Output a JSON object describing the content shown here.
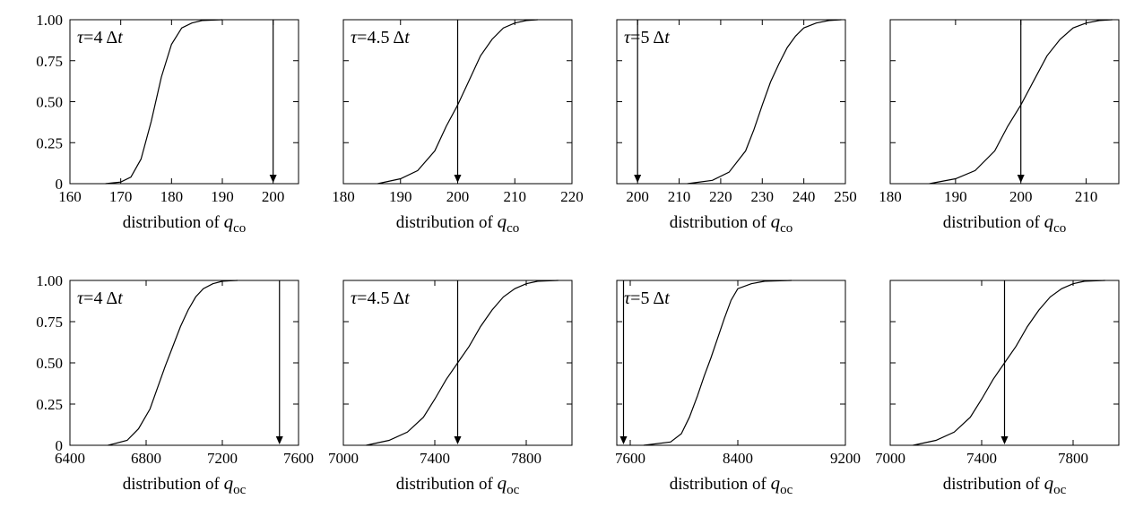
{
  "chart_data": [
    {
      "type": "line",
      "panel_label": {
        "symbol": "τ",
        "eq": "=4 Δ",
        "var": "t"
      },
      "xlabel": {
        "text": "distribution of ",
        "var": "q",
        "sub": "co"
      },
      "xlim": [
        160,
        205
      ],
      "xticks": [
        "160",
        "170",
        "180",
        "190",
        "200"
      ],
      "ylim": [
        0,
        1
      ],
      "yticks": [
        "0",
        "0.25",
        "0.50",
        "0.75",
        "1.00"
      ],
      "show_ytick_labels": true,
      "marker_x": 200,
      "series": [
        {
          "x": [
            167,
            170,
            172,
            174,
            176,
            178,
            180,
            182,
            184,
            186,
            190
          ],
          "y": [
            0,
            0.01,
            0.04,
            0.15,
            0.38,
            0.65,
            0.85,
            0.95,
            0.98,
            0.995,
            1.0
          ]
        }
      ]
    },
    {
      "type": "line",
      "panel_label": {
        "symbol": "τ",
        "eq": "=4.5 Δ",
        "var": "t"
      },
      "xlabel": {
        "text": "distribution of ",
        "var": "q",
        "sub": "co"
      },
      "xlim": [
        180,
        220
      ],
      "xticks": [
        "180",
        "190",
        "200",
        "210",
        "220"
      ],
      "ylim": [
        0,
        1
      ],
      "yticks": [
        "0",
        "0.25",
        "0.50",
        "0.75",
        "1.00"
      ],
      "show_ytick_labels": false,
      "marker_x": 200,
      "series": [
        {
          "x": [
            186,
            190,
            193,
            196,
            198,
            200,
            202,
            204,
            206,
            208,
            210,
            212,
            214
          ],
          "y": [
            0,
            0.03,
            0.08,
            0.2,
            0.35,
            0.48,
            0.63,
            0.78,
            0.88,
            0.95,
            0.98,
            0.995,
            1.0
          ]
        }
      ]
    },
    {
      "type": "line",
      "panel_label": {
        "symbol": "τ",
        "eq": "=5 Δ",
        "var": "t"
      },
      "xlabel": {
        "text": "distribution of ",
        "var": "q",
        "sub": "co"
      },
      "xlim": [
        195,
        250
      ],
      "xticks": [
        "200",
        "210",
        "220",
        "230",
        "240",
        "250"
      ],
      "ylim": [
        0,
        1
      ],
      "yticks": [
        "0",
        "0.25",
        "0.50",
        "0.75",
        "1.00"
      ],
      "show_ytick_labels": false,
      "marker_x": 200,
      "series": [
        {
          "x": [
            212,
            218,
            222,
            226,
            228,
            230,
            232,
            234,
            236,
            238,
            240,
            243,
            246,
            249
          ],
          "y": [
            0,
            0.02,
            0.07,
            0.2,
            0.33,
            0.48,
            0.62,
            0.73,
            0.83,
            0.9,
            0.95,
            0.98,
            0.995,
            1.0
          ]
        }
      ]
    },
    {
      "type": "line",
      "panel_label": null,
      "xlabel": {
        "text": "distribution of ",
        "var": "q",
        "sub": "co"
      },
      "xlim": [
        180,
        215
      ],
      "xticks": [
        "180",
        "190",
        "200",
        "210"
      ],
      "ylim": [
        0,
        1
      ],
      "yticks": [
        "0",
        "0.25",
        "0.50",
        "0.75",
        "1.00"
      ],
      "show_ytick_labels": false,
      "marker_x": 200,
      "series": [
        {
          "x": [
            186,
            190,
            193,
            196,
            198,
            200,
            202,
            204,
            206,
            208,
            210,
            212,
            214
          ],
          "y": [
            0,
            0.03,
            0.08,
            0.2,
            0.35,
            0.48,
            0.63,
            0.78,
            0.88,
            0.95,
            0.98,
            0.995,
            1.0
          ]
        }
      ]
    },
    {
      "type": "line",
      "panel_label": {
        "symbol": "τ",
        "eq": "=4 Δ",
        "var": "t"
      },
      "xlabel": {
        "text": "distribution of ",
        "var": "q",
        "sub": "oc"
      },
      "xlim": [
        6400,
        7600
      ],
      "xticks": [
        "6400",
        "6800",
        "7200",
        "7600"
      ],
      "ylim": [
        0,
        1
      ],
      "yticks": [
        "0",
        "0.25",
        "0.50",
        "0.75",
        "1.00"
      ],
      "show_ytick_labels": true,
      "marker_x": 7500,
      "series": [
        {
          "x": [
            6600,
            6700,
            6760,
            6820,
            6860,
            6900,
            6940,
            6980,
            7020,
            7060,
            7100,
            7150,
            7200,
            7280
          ],
          "y": [
            0,
            0.03,
            0.1,
            0.22,
            0.35,
            0.48,
            0.6,
            0.72,
            0.82,
            0.9,
            0.95,
            0.98,
            0.995,
            1.0
          ]
        }
      ]
    },
    {
      "type": "line",
      "panel_label": {
        "symbol": "τ",
        "eq": "=4.5 Δ",
        "var": "t"
      },
      "xlabel": {
        "text": "distribution of ",
        "var": "q",
        "sub": "oc"
      },
      "xlim": [
        7000,
        8000
      ],
      "xticks": [
        "7000",
        "7400",
        "7800"
      ],
      "ylim": [
        0,
        1
      ],
      "yticks": [
        "0",
        "0.25",
        "0.50",
        "0.75",
        "1.00"
      ],
      "show_ytick_labels": false,
      "marker_x": 7500,
      "series": [
        {
          "x": [
            7100,
            7200,
            7280,
            7350,
            7400,
            7450,
            7500,
            7550,
            7600,
            7650,
            7700,
            7750,
            7800,
            7850,
            7940
          ],
          "y": [
            0,
            0.03,
            0.08,
            0.17,
            0.28,
            0.4,
            0.5,
            0.6,
            0.72,
            0.82,
            0.9,
            0.95,
            0.98,
            0.995,
            1.0
          ]
        }
      ]
    },
    {
      "type": "line",
      "panel_label": {
        "symbol": "τ",
        "eq": "=5 Δ",
        "var": "t"
      },
      "xlabel": {
        "text": "distribution of ",
        "var": "q",
        "sub": "oc"
      },
      "xlim": [
        7500,
        9200
      ],
      "xticks": [
        "7600",
        "8400",
        "9200"
      ],
      "ylim": [
        0,
        1
      ],
      "yticks": [
        "0",
        "0.25",
        "0.50",
        "0.75",
        "1.00"
      ],
      "show_ytick_labels": false,
      "marker_x": 7550,
      "series": [
        {
          "x": [
            7700,
            7900,
            7980,
            8040,
            8100,
            8150,
            8200,
            8250,
            8300,
            8350,
            8400,
            8500,
            8600,
            8800
          ],
          "y": [
            0,
            0.02,
            0.07,
            0.17,
            0.3,
            0.42,
            0.53,
            0.65,
            0.77,
            0.88,
            0.95,
            0.98,
            0.995,
            1.0
          ]
        }
      ]
    },
    {
      "type": "line",
      "panel_label": null,
      "xlabel": {
        "text": "distribution of ",
        "var": "q",
        "sub": "oc"
      },
      "xlim": [
        7000,
        8000
      ],
      "xticks": [
        "7000",
        "7400",
        "7800"
      ],
      "ylim": [
        0,
        1
      ],
      "yticks": [
        "0",
        "0.25",
        "0.50",
        "0.75",
        "1.00"
      ],
      "show_ytick_labels": false,
      "marker_x": 7500,
      "series": [
        {
          "x": [
            7100,
            7200,
            7280,
            7350,
            7400,
            7450,
            7500,
            7550,
            7600,
            7650,
            7700,
            7750,
            7800,
            7850,
            7940
          ],
          "y": [
            0,
            0.03,
            0.08,
            0.17,
            0.28,
            0.4,
            0.5,
            0.6,
            0.72,
            0.82,
            0.9,
            0.95,
            0.98,
            0.995,
            1.0
          ]
        }
      ]
    }
  ]
}
